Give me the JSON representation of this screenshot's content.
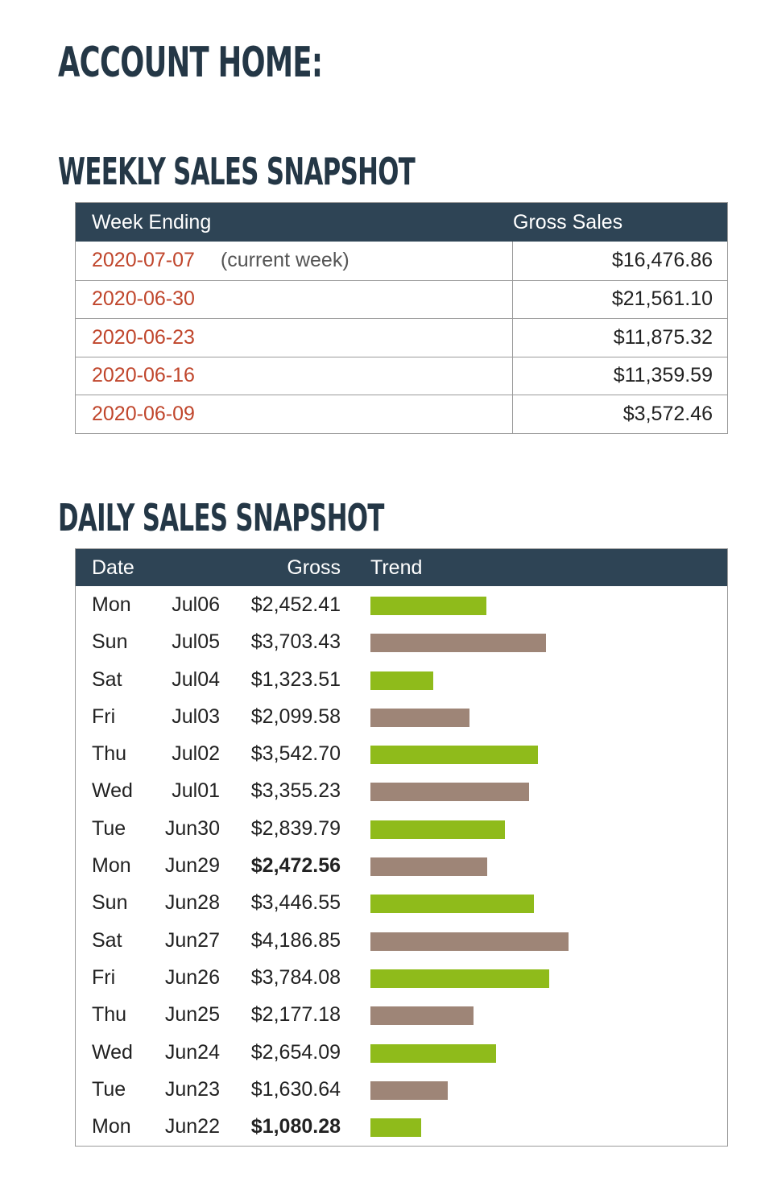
{
  "page": {
    "title": "ACCOUNT HOME:"
  },
  "weekly": {
    "heading": "WEEKLY SALES SNAPSHOT",
    "columns": {
      "week": "Week Ending",
      "gross": "Gross Sales"
    },
    "rows": [
      {
        "week": "2020-07-07",
        "note": "(current week)",
        "gross": "$16,476.86"
      },
      {
        "week": "2020-06-30",
        "note": "",
        "gross": "$21,561.10"
      },
      {
        "week": "2020-06-23",
        "note": "",
        "gross": "$11,875.32"
      },
      {
        "week": "2020-06-16",
        "note": "",
        "gross": "$11,359.59"
      },
      {
        "week": "2020-06-09",
        "note": "",
        "gross": "$3,572.46"
      }
    ]
  },
  "daily": {
    "heading": "DAILY SALES SNAPSHOT",
    "columns": {
      "date": "Date",
      "gross": "Gross",
      "trend": "Trend"
    },
    "colors": {
      "green": "#8fbb1b",
      "brown": "#9e8577"
    },
    "rows": [
      {
        "day": "Mon",
        "date": "Jul06",
        "gross": "$2,452.41",
        "value": 2452.41,
        "bold": false,
        "color": "green"
      },
      {
        "day": "Sun",
        "date": "Jul05",
        "gross": "$3,703.43",
        "value": 3703.43,
        "bold": false,
        "color": "brown"
      },
      {
        "day": "Sat",
        "date": "Jul04",
        "gross": "$1,323.51",
        "value": 1323.51,
        "bold": false,
        "color": "green"
      },
      {
        "day": "Fri",
        "date": "Jul03",
        "gross": "$2,099.58",
        "value": 2099.58,
        "bold": false,
        "color": "brown"
      },
      {
        "day": "Thu",
        "date": "Jul02",
        "gross": "$3,542.70",
        "value": 3542.7,
        "bold": false,
        "color": "green"
      },
      {
        "day": "Wed",
        "date": "Jul01",
        "gross": "$3,355.23",
        "value": 3355.23,
        "bold": false,
        "color": "brown"
      },
      {
        "day": "Tue",
        "date": "Jun30",
        "gross": "$2,839.79",
        "value": 2839.79,
        "bold": false,
        "color": "green"
      },
      {
        "day": "Mon",
        "date": "Jun29",
        "gross": "$2,472.56",
        "value": 2472.56,
        "bold": true,
        "color": "brown"
      },
      {
        "day": "Sun",
        "date": "Jun28",
        "gross": "$3,446.55",
        "value": 3446.55,
        "bold": false,
        "color": "green"
      },
      {
        "day": "Sat",
        "date": "Jun27",
        "gross": "$4,186.85",
        "value": 4186.85,
        "bold": false,
        "color": "brown"
      },
      {
        "day": "Fri",
        "date": "Jun26",
        "gross": "$3,784.08",
        "value": 3784.08,
        "bold": false,
        "color": "green"
      },
      {
        "day": "Thu",
        "date": "Jun25",
        "gross": "$2,177.18",
        "value": 2177.18,
        "bold": false,
        "color": "brown"
      },
      {
        "day": "Wed",
        "date": "Jun24",
        "gross": "$2,654.09",
        "value": 2654.09,
        "bold": false,
        "color": "green"
      },
      {
        "day": "Tue",
        "date": "Jun23",
        "gross": "$1,630.64",
        "value": 1630.64,
        "bold": false,
        "color": "brown"
      },
      {
        "day": "Mon",
        "date": "Jun22",
        "gross": "$1,080.28",
        "value": 1080.28,
        "bold": true,
        "color": "green"
      }
    ]
  }
}
